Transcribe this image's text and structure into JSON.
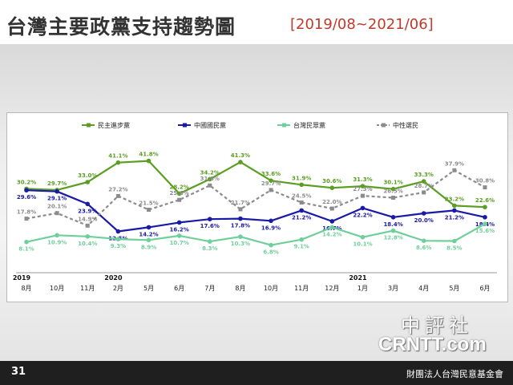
{
  "title": {
    "main": "台灣主要政黨支持趨勢圖",
    "sub": "[2019/08~2021/06]"
  },
  "footer": {
    "page_number": "31",
    "foundation": "財團法人台灣民意基金會"
  },
  "watermark": {
    "chinese": "中評社",
    "english": "CRNTT.com"
  },
  "colors": {
    "dpp": "#5a9e22",
    "kmt": "#1a1aa6",
    "tpp": "#6fcf9a",
    "neutral": "#8c8c8c"
  },
  "chart_data": {
    "type": "line",
    "categories": [
      "8月",
      "10月",
      "11月",
      "2月",
      "5月",
      "6月",
      "7月",
      "8月",
      "10月",
      "11月",
      "12月",
      "1月",
      "3月",
      "4月",
      "5月",
      "6月"
    ],
    "year_labels": [
      {
        "label": "2019",
        "category_index": 0
      },
      {
        "label": "2020",
        "category_index": 3
      },
      {
        "label": "2021",
        "category_index": 11
      }
    ],
    "ylim": [
      0,
      50
    ],
    "grid": false,
    "legend_position": "top",
    "series": [
      {
        "name": "民主進步黨",
        "color": "#5a9e22",
        "dash": false,
        "label_pos": "above",
        "values": [
          30.2,
          29.7,
          33.0,
          41.1,
          41.8,
          28.2,
          34.2,
          41.3,
          33.6,
          31.9,
          30.6,
          31.3,
          30.1,
          33.3,
          23.2,
          22.6
        ],
        "labels": [
          "30.2%",
          "29.7%",
          "33.0%",
          "41.1%",
          "41.8%",
          "28.2%",
          "34.2%",
          "41.3%",
          "33.6%",
          "31.9%",
          "30.6%",
          "31.3%",
          "30.1%",
          "33.3%",
          "23.2%",
          "22.6%"
        ]
      },
      {
        "name": "中國國民黨",
        "color": "#1a1aa6",
        "dash": false,
        "label_pos": "below",
        "values": [
          29.6,
          29.1,
          23.9,
          12.5,
          14.2,
          16.2,
          17.6,
          17.8,
          16.9,
          21.2,
          16.7,
          22.2,
          18.4,
          20.0,
          21.2,
          18.4
        ],
        "labels": [
          "29.6%",
          "29.1%",
          "23.9%",
          "12.5%",
          "14.2%",
          "16.2%",
          "17.6%",
          "17.8%",
          "16.9%",
          "21.2%",
          "16.7%",
          "22.2%",
          "18.4%",
          "20.0%",
          "21.2%",
          "18.4%"
        ]
      },
      {
        "name": "台灣民眾黨",
        "color": "#6fcf9a",
        "dash": false,
        "label_pos": "below",
        "values": [
          8.1,
          10.9,
          10.4,
          9.3,
          8.9,
          10.7,
          8.3,
          10.3,
          6.8,
          9.1,
          14.2,
          10.1,
          12.8,
          8.6,
          8.5,
          15.6
        ],
        "labels": [
          "8.1%",
          "10.9%",
          "10.4%",
          "9.3%",
          "8.9%",
          "10.7%",
          "8.3%",
          "10.3%",
          "6.8%",
          "9.1%",
          "14.2%",
          "10.1%",
          "12.8%",
          "8.6%",
          "8.5%",
          "15.6%"
        ]
      },
      {
        "name": "中性選民",
        "color": "#8c8c8c",
        "dash": true,
        "label_pos": "above",
        "values": [
          17.8,
          20.1,
          14.9,
          27.2,
          21.5,
          25.6,
          31.6,
          21.7,
          29.7,
          24.5,
          22.0,
          27.3,
          26.5,
          28.7,
          37.9,
          30.8
        ],
        "labels": [
          "17.8%",
          "20.1%",
          "14.9%",
          "27.2%",
          "21.5%",
          "25.6%",
          "31.6%",
          "21.7%",
          "29.7%",
          "24.5%",
          "22.0%",
          "27.3%",
          "26.5%",
          "28.7%",
          "37.9%",
          "30.8%"
        ]
      }
    ]
  }
}
